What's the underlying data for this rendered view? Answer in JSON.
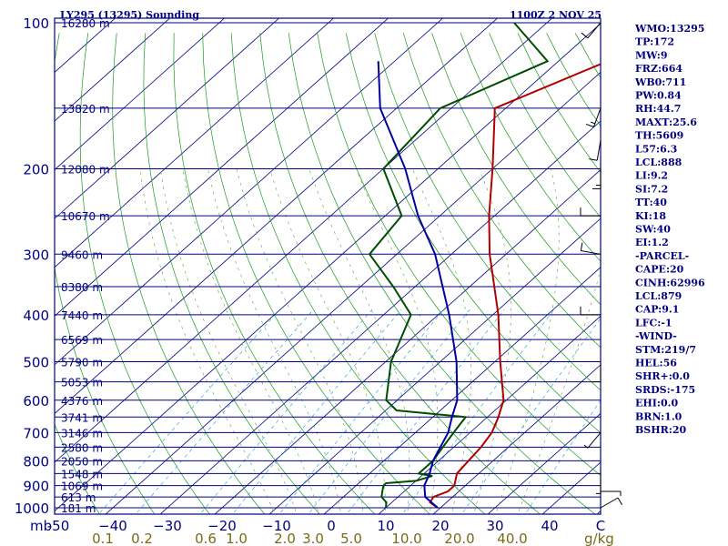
{
  "header": {
    "station": "LY295 (13295) Sounding",
    "datetime": "1100Z  2 NOV 25"
  },
  "axis": {
    "pressure_unit": "mb",
    "mixing_unit": "g/kg"
  },
  "chart_data": {
    "type": "line",
    "pressure_levels": [
      100,
      200,
      300,
      400,
      500,
      600,
      700,
      800,
      900,
      1000
    ],
    "pressure_tick_labels": [
      "100",
      "200",
      "300",
      "400",
      "500",
      "600",
      "700",
      "800",
      "900",
      "1000"
    ],
    "temperature_ticks": [
      -50,
      -40,
      -30,
      -20,
      -10,
      0,
      10,
      20,
      30,
      40
    ],
    "temperature_tick_labels": [
      "-50",
      "−40",
      "−30",
      "−20",
      "−10",
      "0",
      "10",
      "20",
      "30",
      "40"
    ],
    "temperature_last_label": "C",
    "mixing_ratio_labels": [
      "0.1",
      "0.2",
      "0.6",
      "1.0",
      "2.0",
      "3.0",
      "5.0",
      "10.0",
      "20.0",
      "40.0"
    ],
    "heights": [
      {
        "p": 100,
        "label": "16280 m"
      },
      {
        "p": 150,
        "label": "13820 m"
      },
      {
        "p": 200,
        "label": "12080 m"
      },
      {
        "p": 250,
        "label": "10670 m"
      },
      {
        "p": 300,
        "label": "9460 m"
      },
      {
        "p": 350,
        "label": "8380 m"
      },
      {
        "p": 400,
        "label": "7440 m"
      },
      {
        "p": 450,
        "label": "6569 m"
      },
      {
        "p": 500,
        "label": "5790 m"
      },
      {
        "p": 550,
        "label": "5053 m"
      },
      {
        "p": 600,
        "label": "4376 m"
      },
      {
        "p": 650,
        "label": "3741 m"
      },
      {
        "p": 700,
        "label": "3146 m"
      },
      {
        "p": 750,
        "label": "2580 m"
      },
      {
        "p": 800,
        "label": "2050 m"
      },
      {
        "p": 850,
        "label": "1548 m"
      },
      {
        "p": 900,
        "label": "1069 m"
      },
      {
        "p": 950,
        "label": "613 m"
      },
      {
        "p": 1000,
        "label": "181 m"
      }
    ],
    "series": [
      {
        "name": "Temperature",
        "color": "#b00000",
        "points": [
          [
            1000,
            19.5
          ],
          [
            975,
            17
          ],
          [
            950,
            16.5
          ],
          [
            925,
            18
          ],
          [
            900,
            18
          ],
          [
            850,
            16
          ],
          [
            800,
            15.5
          ],
          [
            750,
            15
          ],
          [
            700,
            14
          ],
          [
            650,
            12
          ],
          [
            600,
            9.5
          ],
          [
            500,
            1
          ],
          [
            400,
            -9
          ],
          [
            300,
            -23
          ],
          [
            250,
            -31
          ],
          [
            200,
            -40
          ],
          [
            150,
            -52
          ],
          [
            120,
            -41
          ],
          [
            100,
            -38
          ]
        ]
      },
      {
        "name": "Dew point",
        "color": "#004d00",
        "points": [
          [
            1000,
            10
          ],
          [
            975,
            9
          ],
          [
            950,
            7
          ],
          [
            925,
            6
          ],
          [
            900,
            5
          ],
          [
            890,
            5
          ],
          [
            880,
            10
          ],
          [
            860,
            12
          ],
          [
            850,
            9
          ],
          [
            800,
            9
          ],
          [
            750,
            8
          ],
          [
            700,
            7
          ],
          [
            650,
            6
          ],
          [
            630,
            -8
          ],
          [
            600,
            -12
          ],
          [
            500,
            -19
          ],
          [
            400,
            -25
          ],
          [
            350,
            -34
          ],
          [
            300,
            -45
          ],
          [
            250,
            -47
          ],
          [
            200,
            -60
          ],
          [
            150,
            -62
          ],
          [
            120,
            -52
          ],
          [
            100,
            -66
          ]
        ]
      },
      {
        "name": "Parcel",
        "color": "#0000a0",
        "points": [
          [
            1000,
            19.5
          ],
          [
            950,
            15
          ],
          [
            900,
            12.5
          ],
          [
            850,
            11
          ],
          [
            800,
            9
          ],
          [
            700,
            6
          ],
          [
            650,
            3.5
          ],
          [
            600,
            1
          ],
          [
            500,
            -7
          ],
          [
            400,
            -18
          ],
          [
            300,
            -33
          ],
          [
            250,
            -44
          ],
          [
            200,
            -56
          ],
          [
            150,
            -73
          ],
          [
            120,
            -83
          ]
        ]
      }
    ],
    "wind_barbs": [
      {
        "p": 100,
        "dir": 220,
        "spd": 10
      },
      {
        "p": 150,
        "dir": 200,
        "spd": 15
      },
      {
        "p": 175,
        "dir": 190,
        "spd": 10
      },
      {
        "p": 200,
        "dir": 180,
        "spd": 15
      },
      {
        "p": 250,
        "dir": 270,
        "spd": 10
      },
      {
        "p": 300,
        "dir": 280,
        "spd": 10
      },
      {
        "p": 400,
        "dir": 270,
        "spd": 10
      },
      {
        "p": 500,
        "dir": 180,
        "spd": 10
      },
      {
        "p": 700,
        "dir": 220,
        "spd": 5
      },
      {
        "p": 850,
        "dir": 180,
        "spd": 5
      },
      {
        "p": 925,
        "dir": 90,
        "spd": 5
      },
      {
        "p": 1000,
        "dir": 60,
        "spd": 10
      }
    ]
  },
  "indices": [
    "WMO:13295",
    "TP:172",
    "MW:9",
    "FRZ:664",
    "WB0:711",
    "PW:0.84",
    "RH:44.7",
    "MAXT:25.6",
    "TH:5609",
    "L57:6.3",
    "LCL:888",
    "LI:9.2",
    "SI:7.2",
    "TT:40",
    "KI:18",
    "SW:40",
    "EI:1.2",
    "-PARCEL-",
    "CAPE:20",
    "CINH:62996",
    "LCL:879",
    "CAP:9.1",
    "LFC:-1",
    "-WIND-",
    "STM:219/7",
    "HEL:56",
    "SHR+:0.0",
    "SRDS:-175",
    "EHI:0.0",
    "BRN:1.0",
    "BSHR:20"
  ]
}
